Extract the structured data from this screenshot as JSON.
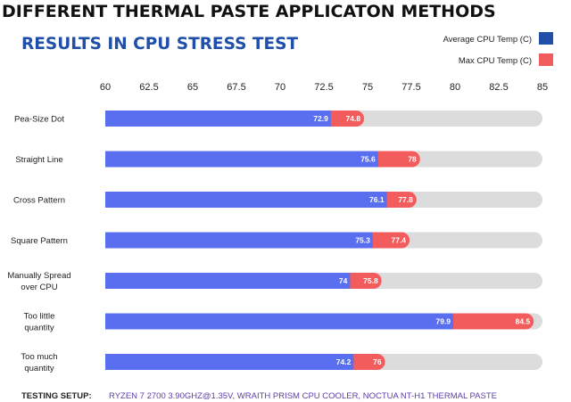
{
  "chart_data": {
    "type": "bar",
    "orientation": "horizontal",
    "stacked": "overlay",
    "title": "DIFFERENT THERMAL PASTE APPLICATON METHODS",
    "subtitle": "RESULTS IN CPU STRESS TEST",
    "categories": [
      [
        "Pea-Size Dot"
      ],
      [
        "Straight Line"
      ],
      [
        "Cross Pattern"
      ],
      [
        "Square Pattern"
      ],
      [
        "Manually Spread",
        "over CPU"
      ],
      [
        "Too little",
        "quantity"
      ],
      [
        "Too much",
        "quantity"
      ]
    ],
    "series": [
      {
        "name": "Average CPU Temp (C)",
        "color": "#5a6ff0",
        "values": [
          72.9,
          75.6,
          76.1,
          75.3,
          74,
          79.9,
          74.2
        ]
      },
      {
        "name": "Max CPU Temp (C)",
        "color": "#f25c5c",
        "values": [
          74.8,
          78,
          77.8,
          77.4,
          75.8,
          84.5,
          76
        ]
      }
    ],
    "legend_colors": [
      "#1f4fa8",
      "#f25c5c"
    ],
    "track_color": "#dcdcdc",
    "xlim": [
      60,
      85
    ],
    "xticks": [
      60,
      62.5,
      65,
      67.5,
      70,
      72.5,
      75,
      77.5,
      80,
      82.5,
      85
    ],
    "legend_position": "top-right",
    "grid": false
  },
  "footer": {
    "label": "TESTING SETUP:",
    "value": "RYZEN 7 2700 3.90GHZ@1.35V, WRAITH PRISM CPU COOLER, NOCTUA NT-H1 THERMAL PASTE"
  }
}
